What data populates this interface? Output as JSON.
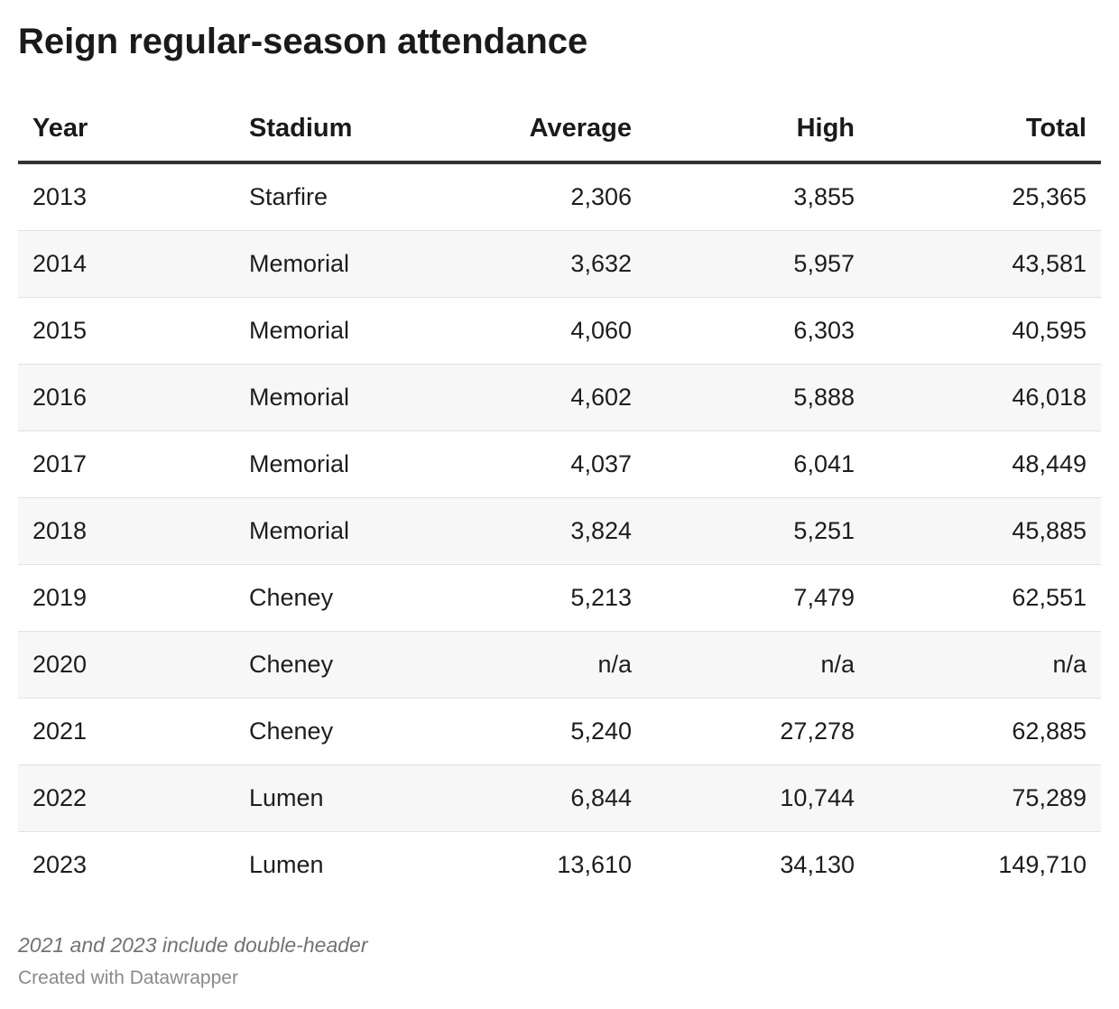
{
  "chart_data": {
    "type": "table",
    "title": "Reign regular-season attendance",
    "columns": [
      "Year",
      "Stadium",
      "Average",
      "High",
      "Total"
    ],
    "rows": [
      [
        "2013",
        "Starfire",
        "2,306",
        "3,855",
        "25,365"
      ],
      [
        "2014",
        "Memorial",
        "3,632",
        "5,957",
        "43,581"
      ],
      [
        "2015",
        "Memorial",
        "4,060",
        "6,303",
        "40,595"
      ],
      [
        "2016",
        "Memorial",
        "4,602",
        "5,888",
        "46,018"
      ],
      [
        "2017",
        "Memorial",
        "4,037",
        "6,041",
        "48,449"
      ],
      [
        "2018",
        "Memorial",
        "3,824",
        "5,251",
        "45,885"
      ],
      [
        "2019",
        "Cheney",
        "5,213",
        "7,479",
        "62,551"
      ],
      [
        "2020",
        "Cheney",
        "n/a",
        "n/a",
        "n/a"
      ],
      [
        "2021",
        "Cheney",
        "5,240",
        "27,278",
        "62,885"
      ],
      [
        "2022",
        "Lumen",
        "6,844",
        "10,744",
        "75,289"
      ],
      [
        "2023",
        "Lumen",
        "13,610",
        "34,130",
        "149,710"
      ]
    ],
    "note": "2021 and 2023 include double-header",
    "credit": "Created with Datawrapper"
  }
}
